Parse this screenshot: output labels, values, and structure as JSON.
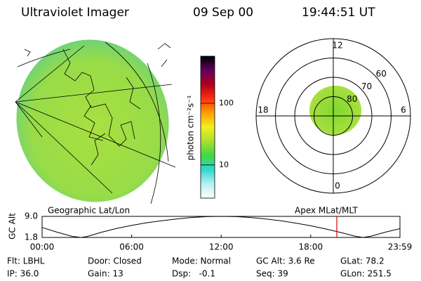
{
  "header": {
    "title": "Ultraviolet Imager",
    "date": "09 Sep 00",
    "time": "19:44:51 UT"
  },
  "chart_data": [
    {
      "type": "colorbar",
      "label": "photon cm⁻²s⁻¹",
      "log_scale": true,
      "ylim": [
        2.9,
        580
      ],
      "yticks": [
        10,
        100
      ],
      "colors": [
        "#ffffff",
        "#b8f0f0",
        "#30d8d0",
        "#40d840",
        "#a8e030",
        "#f0f020",
        "#ffa000",
        "#ff3010",
        "#b00018",
        "#600060",
        "#000000"
      ]
    },
    {
      "type": "polar",
      "rlim": [
        90,
        50
      ],
      "rticks": [
        80,
        70,
        60
      ],
      "mlt_ticks": [
        12,
        18,
        0,
        6
      ]
    },
    {
      "type": "line",
      "ylabel": "GC Alt",
      "left_label": "Geographic Lat/Lon",
      "right_label": "Apex MLat/MLT",
      "x": [
        0,
        1,
        2,
        2.6,
        3,
        4,
        5,
        6,
        7,
        8,
        9,
        10,
        11,
        12,
        13,
        14,
        15,
        16,
        17,
        18,
        19,
        20,
        21,
        21.5,
        22,
        23,
        23.98
      ],
      "values": [
        5.2,
        3.6,
        2.2,
        1.8,
        2.1,
        3.6,
        4.9,
        5.9,
        6.8,
        7.5,
        8.1,
        8.6,
        8.9,
        9.0,
        8.9,
        8.6,
        8.1,
        7.5,
        6.7,
        5.8,
        4.7,
        3.5,
        2.2,
        1.8,
        2.2,
        3.6,
        4.8
      ],
      "color": "#000000",
      "xlim": [
        0,
        23.98
      ],
      "xticks": [
        {
          "value": 0,
          "label": "00:00"
        },
        {
          "value": 6,
          "label": "06:00"
        },
        {
          "value": 12,
          "label": "12:00"
        },
        {
          "value": 18,
          "label": "18:00"
        },
        {
          "value": 23.98,
          "label": "23:59"
        }
      ],
      "ylim": [
        1.8,
        9.0
      ],
      "yticks": [
        {
          "value": 9.0,
          "label": "9.0"
        },
        1.8
      ],
      "marker_x": 19.748,
      "marker_color": "#e00000"
    }
  ],
  "footer": {
    "rows": [
      [
        "Flt: LBHL",
        "Door: Closed",
        "Mode: Normal",
        "GC Alt: 3.6 Re",
        "GLat: 78.2"
      ],
      [
        "IP: 36.0",
        "Gain: 13",
        "Dsp:   -0.1",
        "Seq: 39",
        "GLon: 251.5"
      ]
    ]
  }
}
